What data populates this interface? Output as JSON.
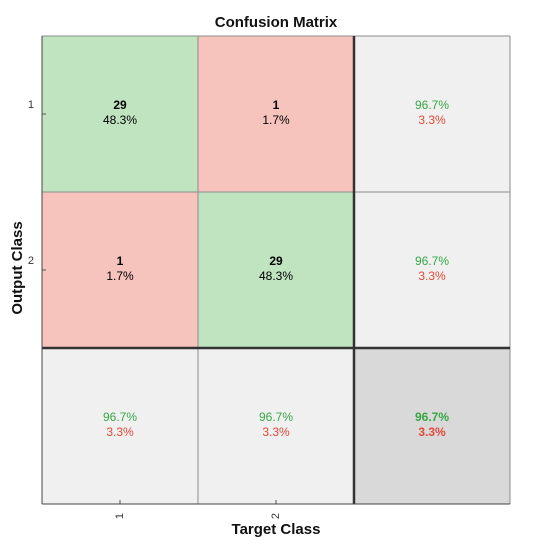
{
  "chart_data": {
    "type": "heatmap",
    "title": "Confusion Matrix",
    "xlabel": "Target Class",
    "ylabel": "Output Class",
    "classes": [
      "1",
      "2"
    ],
    "matrix": [
      {
        "count": "29",
        "percent": "48.3%"
      },
      {
        "count": "1",
        "percent": "1.7%"
      },
      {
        "count": "1",
        "percent": "1.7%"
      },
      {
        "count": "29",
        "percent": "48.3%"
      }
    ],
    "row_summary": [
      {
        "correct": "96.7%",
        "wrong": "3.3%"
      },
      {
        "correct": "96.7%",
        "wrong": "3.3%"
      }
    ],
    "col_summary": [
      {
        "correct": "96.7%",
        "wrong": "3.3%"
      },
      {
        "correct": "96.7%",
        "wrong": "3.3%"
      }
    ],
    "overall": {
      "correct": "96.7%",
      "wrong": "3.3%"
    }
  },
  "colors": {
    "correct_cell": "#bfe4bf",
    "wrong_cell": "#f7c3bd",
    "summary_cell": "#f0f0f0",
    "overall_cell": "#d9d9d9",
    "correct_text": "#35a845",
    "wrong_text": "#e0493a",
    "grid": "#8c8c8c",
    "separator": "#333333"
  }
}
